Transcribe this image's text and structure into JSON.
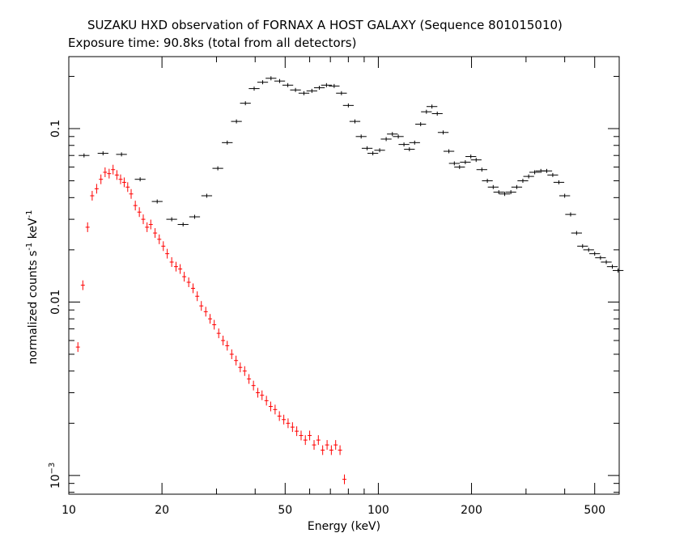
{
  "title": "SUZAKU HXD observation of FORNAX A HOST GALAXY (Sequence 801015010)",
  "subtitle": "Exposure time: 90.8ks (total from all detectors)",
  "chart_data": {
    "type": "scatter",
    "xlabel": "Energy (keV)",
    "ylabel_base": "normalized counts s",
    "ylabel_exp1": "-1",
    "ylabel_mid": " keV",
    "ylabel_exp2": "-1",
    "xscale": "log",
    "yscale": "log",
    "xlim": [
      10,
      600
    ],
    "ylim": [
      0.00078,
      0.26
    ],
    "x_ticks": [
      {
        "value": 10,
        "label": "10"
      },
      {
        "value": 20,
        "label": "20"
      },
      {
        "value": 50,
        "label": "50"
      },
      {
        "value": 100,
        "label": "100"
      },
      {
        "value": 200,
        "label": "200"
      },
      {
        "value": 500,
        "label": "500"
      }
    ],
    "y_ticks": [
      {
        "value": 0.1,
        "label": "0.1"
      },
      {
        "value": 0.01,
        "label": "0.01"
      },
      {
        "value": 0.001,
        "label_base": "10",
        "label_exp": "−3"
      }
    ],
    "grid": false,
    "legend": "none",
    "series": [
      {
        "color": "#000000",
        "data": [
          [
            11.2,
            0.07
          ],
          [
            12.9,
            0.072
          ],
          [
            14.8,
            0.071
          ],
          [
            17.0,
            0.051
          ],
          [
            19.3,
            0.038
          ],
          [
            21.5,
            0.03
          ],
          [
            23.4,
            0.028
          ],
          [
            25.5,
            0.031
          ],
          [
            27.9,
            0.041
          ],
          [
            30.3,
            0.059
          ],
          [
            32.5,
            0.083
          ],
          [
            34.8,
            0.11
          ],
          [
            37.2,
            0.14
          ],
          [
            39.7,
            0.17
          ],
          [
            42.3,
            0.185
          ],
          [
            45.0,
            0.195
          ],
          [
            48.0,
            0.188
          ],
          [
            51.0,
            0.178
          ],
          [
            54.0,
            0.167
          ],
          [
            57.5,
            0.16
          ],
          [
            61.0,
            0.165
          ],
          [
            64.5,
            0.172
          ],
          [
            68.0,
            0.178
          ],
          [
            72.0,
            0.176
          ],
          [
            76.0,
            0.16
          ],
          [
            80.0,
            0.136
          ],
          [
            84.0,
            0.11
          ],
          [
            88.0,
            0.09
          ],
          [
            92.0,
            0.077
          ],
          [
            96.0,
            0.072
          ],
          [
            101.0,
            0.075
          ],
          [
            106.0,
            0.087
          ],
          [
            111.0,
            0.093
          ],
          [
            116.0,
            0.09
          ],
          [
            121.0,
            0.081
          ],
          [
            126.0,
            0.076
          ],
          [
            131.0,
            0.083
          ],
          [
            137.0,
            0.106
          ],
          [
            143.0,
            0.125
          ],
          [
            149.0,
            0.134
          ],
          [
            155.0,
            0.122
          ],
          [
            162.0,
            0.095
          ],
          [
            169.0,
            0.074
          ],
          [
            176.0,
            0.063
          ],
          [
            183.0,
            0.06
          ],
          [
            191.0,
            0.064
          ],
          [
            199.0,
            0.069
          ],
          [
            207.0,
            0.066
          ],
          [
            216.0,
            0.058
          ],
          [
            225.0,
            0.05
          ],
          [
            235.0,
            0.046
          ],
          [
            245.0,
            0.043
          ],
          [
            256.0,
            0.042
          ],
          [
            268.0,
            0.043
          ],
          [
            280.0,
            0.046
          ],
          [
            293.0,
            0.05
          ],
          [
            306.0,
            0.053
          ],
          [
            320.0,
            0.056
          ],
          [
            335.0,
            0.057
          ],
          [
            350.0,
            0.057
          ],
          [
            366.0,
            0.054
          ],
          [
            383.0,
            0.049
          ],
          [
            400.0,
            0.041
          ],
          [
            418.0,
            0.032
          ],
          [
            437.0,
            0.025
          ],
          [
            457.0,
            0.021
          ],
          [
            478.0,
            0.02
          ],
          [
            500.0,
            0.019
          ],
          [
            522.0,
            0.018
          ],
          [
            545.0,
            0.017
          ],
          [
            570.0,
            0.016
          ],
          [
            595.0,
            0.0152
          ]
        ]
      },
      {
        "color": "#ff0000",
        "data": [
          [
            10.7,
            0.0055
          ],
          [
            11.1,
            0.0125
          ],
          [
            11.5,
            0.027
          ],
          [
            11.9,
            0.041
          ],
          [
            12.3,
            0.045
          ],
          [
            12.7,
            0.051
          ],
          [
            13.1,
            0.056
          ],
          [
            13.5,
            0.055
          ],
          [
            13.9,
            0.058
          ],
          [
            14.3,
            0.054
          ],
          [
            14.7,
            0.051
          ],
          [
            15.1,
            0.049
          ],
          [
            15.5,
            0.046
          ],
          [
            15.9,
            0.042
          ],
          [
            16.4,
            0.036
          ],
          [
            16.9,
            0.033
          ],
          [
            17.4,
            0.03
          ],
          [
            17.9,
            0.027
          ],
          [
            18.4,
            0.028
          ],
          [
            19.0,
            0.025
          ],
          [
            19.6,
            0.023
          ],
          [
            20.2,
            0.021
          ],
          [
            20.8,
            0.019
          ],
          [
            21.5,
            0.017
          ],
          [
            22.2,
            0.016
          ],
          [
            22.9,
            0.0155
          ],
          [
            23.6,
            0.014
          ],
          [
            24.4,
            0.013
          ],
          [
            25.2,
            0.012
          ],
          [
            26.0,
            0.0108
          ],
          [
            26.8,
            0.0095
          ],
          [
            27.7,
            0.0088
          ],
          [
            28.6,
            0.008
          ],
          [
            29.5,
            0.0074
          ],
          [
            30.5,
            0.0066
          ],
          [
            31.5,
            0.006
          ],
          [
            32.5,
            0.0056
          ],
          [
            33.6,
            0.005
          ],
          [
            34.7,
            0.0046
          ],
          [
            35.8,
            0.0042
          ],
          [
            37.0,
            0.004
          ],
          [
            38.2,
            0.0036
          ],
          [
            39.5,
            0.0033
          ],
          [
            40.8,
            0.003
          ],
          [
            42.1,
            0.0029
          ],
          [
            43.5,
            0.0027
          ],
          [
            44.9,
            0.0025
          ],
          [
            46.4,
            0.0024
          ],
          [
            47.9,
            0.0022
          ],
          [
            49.5,
            0.0021
          ],
          [
            51.1,
            0.002
          ],
          [
            52.8,
            0.0019
          ],
          [
            54.5,
            0.0018
          ],
          [
            56.3,
            0.0017
          ],
          [
            58.1,
            0.0016
          ],
          [
            60.0,
            0.0017
          ],
          [
            62.0,
            0.0015
          ],
          [
            64.0,
            0.0016
          ],
          [
            66.1,
            0.0014
          ],
          [
            68.3,
            0.0015
          ],
          [
            70.5,
            0.0014
          ],
          [
            72.8,
            0.0015
          ],
          [
            75.2,
            0.0014
          ],
          [
            77.7,
            0.00095
          ]
        ]
      }
    ]
  }
}
